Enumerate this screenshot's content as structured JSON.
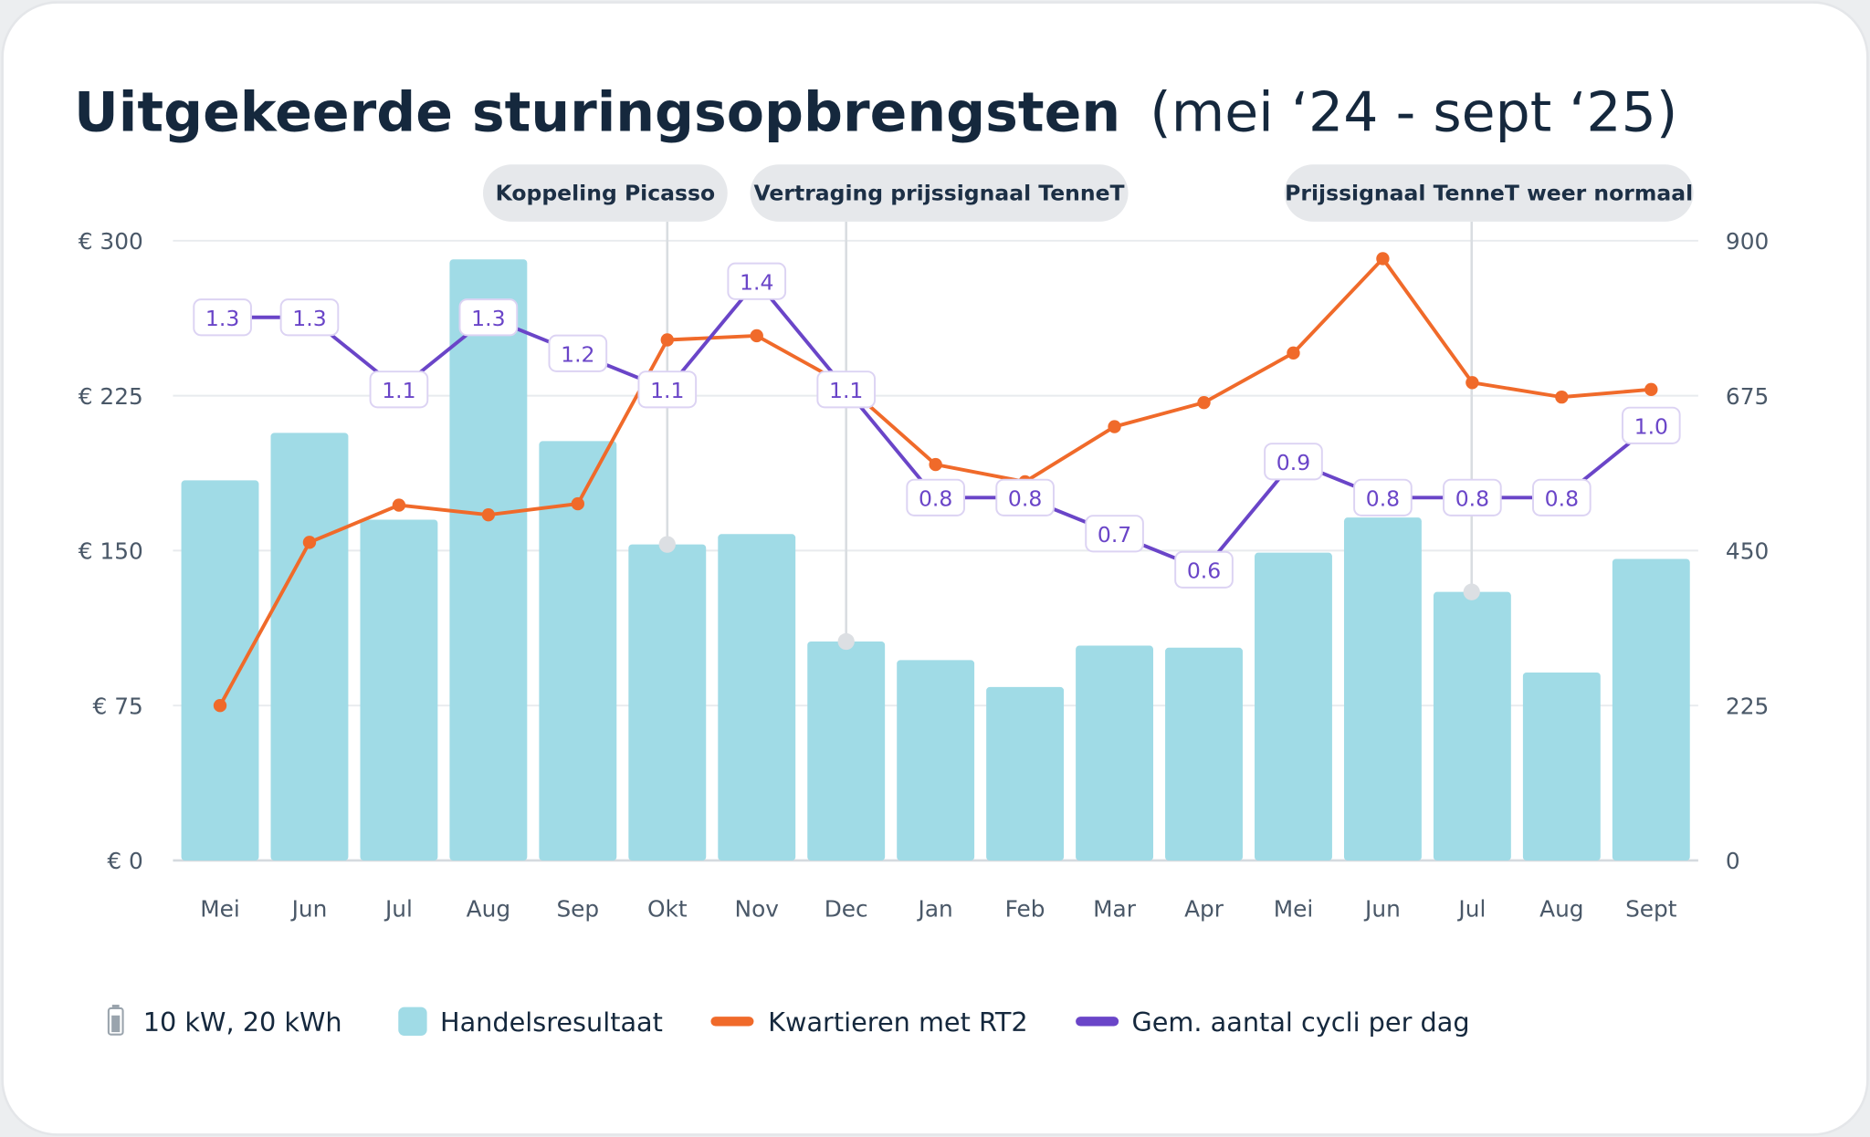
{
  "title": {
    "bold": "Uitgekeerde sturingsopbrengsten",
    "rest": "(mei ‘24 - sept ‘25)"
  },
  "annotations": [
    {
      "label": "Koppeling Picasso",
      "month_index": 5
    },
    {
      "label": "Vertraging prijssignaal TenneT",
      "month_index": 7
    },
    {
      "label": "Prijssignaal TenneT weer normaal",
      "month_index": 14
    }
  ],
  "legend": {
    "battery": {
      "icon": "battery-icon",
      "label": "10 kW, 20 kWh"
    },
    "items": [
      "Handelsresultaat",
      "Kwartieren met RT2",
      "Gem. aantal cycli per dag"
    ]
  },
  "colors": {
    "bars": "#a0dbe6",
    "orange": "#f06a2a",
    "purple": "#6a45c8",
    "title": "#15283d"
  },
  "chart_data": {
    "type": "bar+line",
    "categories": [
      "Mei",
      "Jun",
      "Jul",
      "Aug",
      "Sep",
      "Okt",
      "Nov",
      "Dec",
      "Jan",
      "Feb",
      "Mar",
      "Apr",
      "Mei",
      "Jun",
      "Jul",
      "Aug",
      "Sept"
    ],
    "y_left": {
      "ticks": [
        "€ 0",
        "€ 75",
        "€ 150",
        "€ 225",
        "€ 300"
      ],
      "range": [
        0,
        300
      ]
    },
    "y_right": {
      "ticks": [
        "0",
        "225",
        "450",
        "675",
        "900"
      ],
      "range": [
        0,
        900
      ]
    },
    "grid": true,
    "legend_position": "bottom",
    "series": [
      {
        "name": "Handelsresultaat",
        "type": "bar",
        "axis": "left",
        "values": [
          184,
          207,
          165,
          291,
          203,
          153,
          158,
          106,
          97,
          84,
          104,
          103,
          149,
          166,
          130,
          91,
          146
        ]
      },
      {
        "name": "Kwartieren met RT2",
        "type": "line",
        "axis": "right",
        "values": [
          225,
          462,
          516,
          502,
          518,
          756,
          762,
          690,
          575,
          550,
          630,
          665,
          737,
          874,
          694,
          673,
          684
        ]
      },
      {
        "name": "Gem. aantal cycli per dag",
        "type": "line",
        "axis": "labels",
        "values": [
          1.3,
          1.3,
          1.1,
          1.3,
          1.2,
          1.1,
          1.4,
          1.1,
          0.8,
          0.8,
          0.7,
          0.6,
          0.9,
          0.8,
          0.8,
          0.8,
          1.0
        ]
      }
    ]
  }
}
